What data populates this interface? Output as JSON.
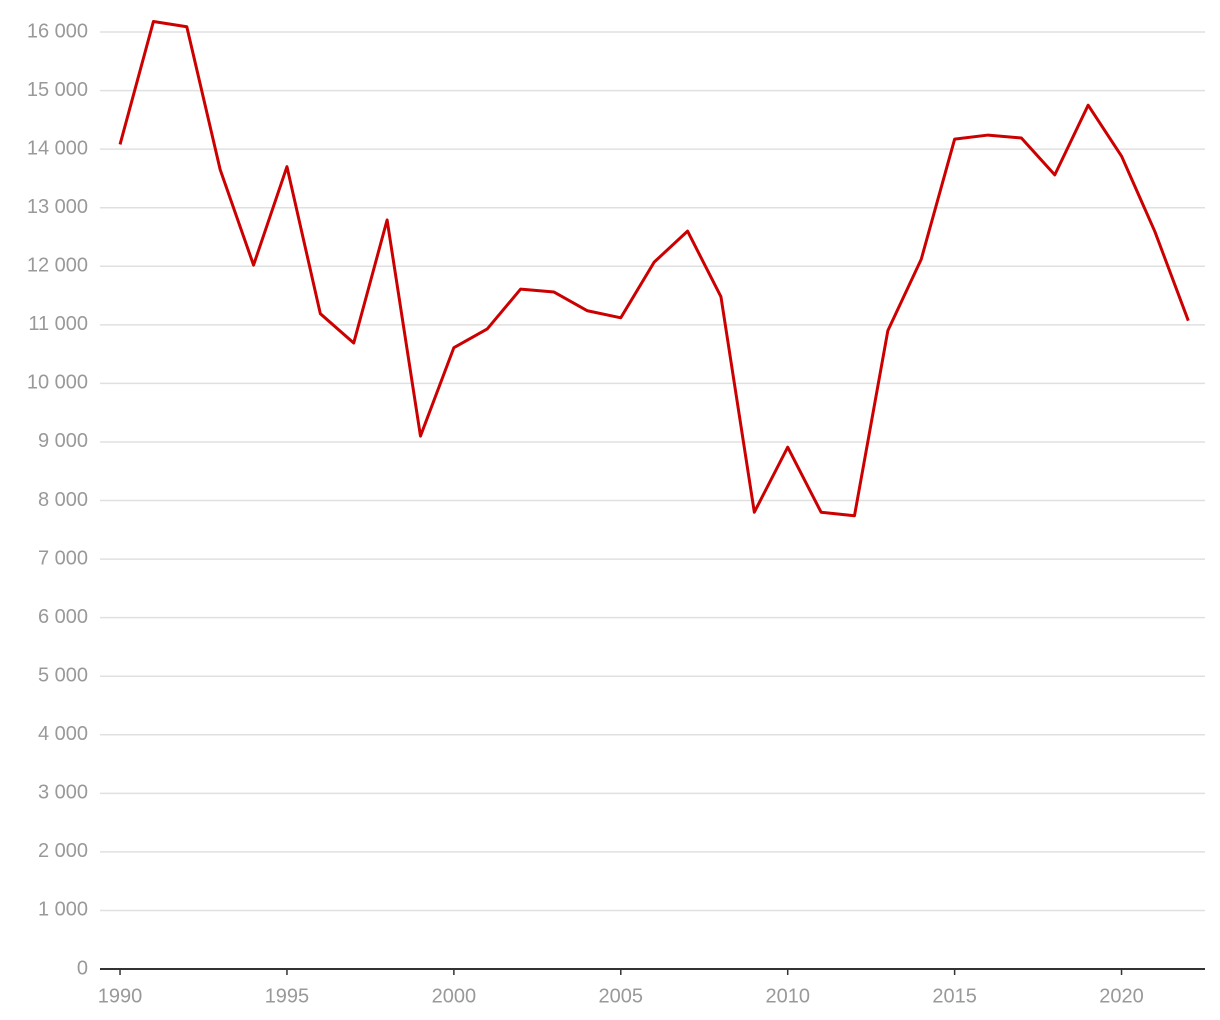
{
  "chart_data": {
    "type": "line",
    "x": [
      1990,
      1991,
      1992,
      1993,
      1994,
      1995,
      1996,
      1997,
      1998,
      1999,
      2000,
      2001,
      2002,
      2003,
      2004,
      2005,
      2006,
      2007,
      2008,
      2009,
      2010,
      2011,
      2012,
      2013,
      2014,
      2015,
      2016,
      2017,
      2018,
      2019,
      2020,
      2021,
      2022
    ],
    "series": [
      {
        "color": "#cc0000",
        "values": [
          14080,
          16180,
          16090,
          13650,
          12020,
          13700,
          11190,
          10690,
          12790,
          9100,
          10610,
          10930,
          11610,
          11560,
          11240,
          11120,
          12070,
          12600,
          11480,
          7800,
          8910,
          7800,
          7740,
          10900,
          12120,
          14170,
          14240,
          14190,
          13560,
          14750,
          13880,
          12590,
          11070
        ]
      }
    ],
    "xlim": [
      1989.4,
      2022.5
    ],
    "xticks": [
      1990,
      1995,
      2000,
      2005,
      2010,
      2015,
      2020
    ],
    "ylim": [
      0,
      16000
    ],
    "yticks": [
      0,
      {
        "value": 1000,
        "label": "1 000"
      },
      {
        "value": 2000,
        "label": "2 000"
      },
      {
        "value": 3000,
        "label": "3 000"
      },
      {
        "value": 4000,
        "label": "4 000"
      },
      {
        "value": 5000,
        "label": "5 000"
      },
      {
        "value": 6000,
        "label": "6 000"
      },
      {
        "value": 7000,
        "label": "7 000"
      },
      {
        "value": 8000,
        "label": "8 000"
      },
      {
        "value": 9000,
        "label": "9 000"
      },
      {
        "value": 10000,
        "label": "10 000"
      },
      {
        "value": 11000,
        "label": "11 000"
      },
      {
        "value": 12000,
        "label": "12 000"
      },
      {
        "value": 13000,
        "label": "13 000"
      },
      {
        "value": 14000,
        "label": "14 000"
      },
      {
        "value": 15000,
        "label": "15 000"
      },
      {
        "value": 16000,
        "label": "16 000"
      }
    ],
    "grid": true
  }
}
